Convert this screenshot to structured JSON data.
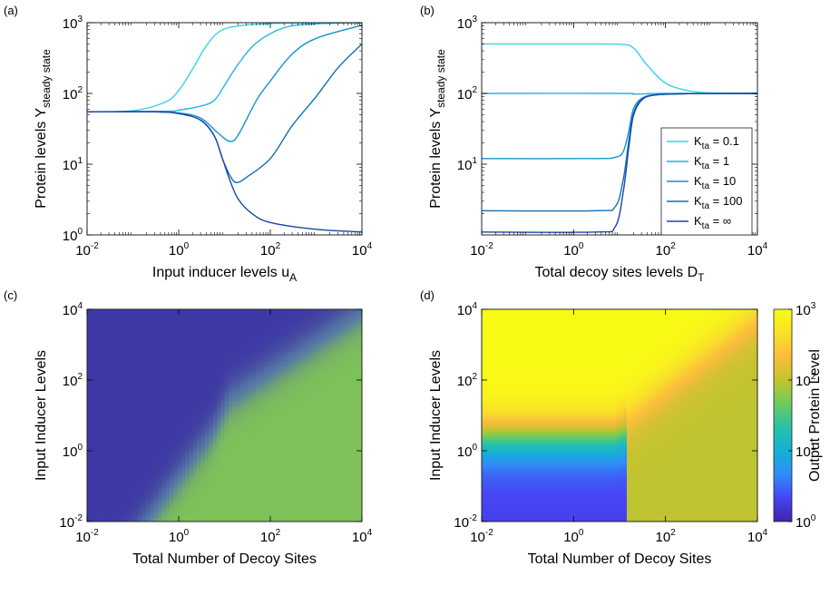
{
  "figure": {
    "panel_labels": [
      "(a)",
      "(b)",
      "(c)",
      "(d)"
    ]
  },
  "chart_data": [
    {
      "panel": "(a)",
      "type": "line",
      "scale": "log-log",
      "xlabel": {
        "main": "Input inducer levels u",
        "sub": "A"
      },
      "ylabel": {
        "main": "Protein levels Y",
        "sub": "steady state"
      },
      "xlim": [
        0.01,
        10000
      ],
      "ylim": [
        1,
        1000
      ],
      "xticks": [
        {
          "base": "10",
          "exp": "-2",
          "value": 0.01
        },
        {
          "base": "10",
          "exp": "0",
          "value": 1
        },
        {
          "base": "10",
          "exp": "2",
          "value": 100
        },
        {
          "base": "10",
          "exp": "4",
          "value": 10000
        }
      ],
      "yticks": [
        {
          "base": "10",
          "exp": "0",
          "value": 1
        },
        {
          "base": "10",
          "exp": "1",
          "value": 10
        },
        {
          "base": "10",
          "exp": "2",
          "value": 100
        },
        {
          "base": "10",
          "exp": "3",
          "value": 1000
        }
      ],
      "series": [
        {
          "color": "#37d4e8",
          "points": [
            [
              0.01,
              55
            ],
            [
              0.1,
              57
            ],
            [
              0.5,
              75
            ],
            [
              1,
              110
            ],
            [
              2,
              220
            ],
            [
              4,
              470
            ],
            [
              8,
              760
            ],
            [
              20,
              900
            ],
            [
              100,
              970
            ],
            [
              1000,
              995
            ],
            [
              10000,
              1000
            ]
          ]
        },
        {
          "color": "#22b4dc",
          "points": [
            [
              0.01,
              55
            ],
            [
              0.5,
              56
            ],
            [
              1,
              58
            ],
            [
              3,
              66
            ],
            [
              6,
              80
            ],
            [
              10,
              130
            ],
            [
              20,
              260
            ],
            [
              50,
              520
            ],
            [
              200,
              850
            ],
            [
              1000,
              960
            ],
            [
              10000,
              1000
            ]
          ]
        },
        {
          "color": "#1592cc",
          "points": [
            [
              0.01,
              55
            ],
            [
              0.3,
              55
            ],
            [
              1,
              53
            ],
            [
              3,
              45
            ],
            [
              7,
              28
            ],
            [
              13,
              21
            ],
            [
              20,
              26
            ],
            [
              50,
              80
            ],
            [
              100,
              150
            ],
            [
              300,
              360
            ],
            [
              1000,
              600
            ],
            [
              10000,
              920
            ]
          ]
        },
        {
          "color": "#106fb8",
          "points": [
            [
              0.01,
              55
            ],
            [
              0.3,
              55
            ],
            [
              1,
              52
            ],
            [
              3,
              42
            ],
            [
              6,
              25
            ],
            [
              9,
              12
            ],
            [
              13,
              7
            ],
            [
              18,
              5.5
            ],
            [
              30,
              6.5
            ],
            [
              100,
              12
            ],
            [
              300,
              35
            ],
            [
              1000,
              90
            ],
            [
              3000,
              230
            ],
            [
              10000,
              500
            ]
          ]
        },
        {
          "color": "#1749a8",
          "points": [
            [
              0.01,
              55
            ],
            [
              0.3,
              55
            ],
            [
              1,
              52
            ],
            [
              3,
              42
            ],
            [
              6,
              25
            ],
            [
              9,
              12
            ],
            [
              13,
              6
            ],
            [
              20,
              3.2
            ],
            [
              40,
              2
            ],
            [
              100,
              1.5
            ],
            [
              1000,
              1.2
            ],
            [
              10000,
              1.1
            ]
          ]
        }
      ]
    },
    {
      "panel": "(b)",
      "type": "line",
      "scale": "log-log",
      "xlabel": {
        "main": "Total decoy sites levels D",
        "sub": "T"
      },
      "ylabel": {
        "main": "Protein levels Y",
        "sub": "steady state"
      },
      "xlim": [
        0.01,
        10000
      ],
      "ylim": [
        1,
        1000
      ],
      "xticks": [
        {
          "base": "10",
          "exp": "-2",
          "value": 0.01
        },
        {
          "base": "10",
          "exp": "0",
          "value": 1
        },
        {
          "base": "10",
          "exp": "2",
          "value": 100
        },
        {
          "base": "10",
          "exp": "4",
          "value": 10000
        }
      ],
      "yticks": [
        {
          "base": "10",
          "exp": "1",
          "value": 10
        },
        {
          "base": "10",
          "exp": "2",
          "value": 100
        },
        {
          "base": "10",
          "exp": "3",
          "value": 1000
        }
      ],
      "legend_position": "right",
      "series": [
        {
          "name_main": "K",
          "name_sub": "ta",
          "name_value": " = 0.1",
          "color": "#37d4e8",
          "points": [
            [
              0.01,
              500
            ],
            [
              1,
              500
            ],
            [
              10,
              495
            ],
            [
              20,
              440
            ],
            [
              40,
              250
            ],
            [
              100,
              140
            ],
            [
              300,
              110
            ],
            [
              1000,
              102
            ],
            [
              10000,
              100
            ]
          ]
        },
        {
          "name_main": "K",
          "name_sub": "ta",
          "name_value": " = 1",
          "color": "#22b4dc",
          "points": [
            [
              0.01,
              100
            ],
            [
              10,
              100
            ],
            [
              20,
              98
            ],
            [
              40,
              99
            ],
            [
              100,
              100
            ],
            [
              10000,
              100
            ]
          ]
        },
        {
          "name_main": "K",
          "name_sub": "ta",
          "name_value": " = 10",
          "color": "#1592cc",
          "points": [
            [
              0.01,
              12
            ],
            [
              3,
              12
            ],
            [
              8,
              12.5
            ],
            [
              12,
              15
            ],
            [
              16,
              30
            ],
            [
              20,
              60
            ],
            [
              30,
              85
            ],
            [
              60,
              96
            ],
            [
              300,
              99
            ],
            [
              10000,
              100
            ]
          ]
        },
        {
          "name_main": "K",
          "name_sub": "ta",
          "name_value": " = 100",
          "color": "#106fb8",
          "points": [
            [
              0.01,
              2.2
            ],
            [
              3,
              2.2
            ],
            [
              8,
              2.5
            ],
            [
              12,
              6
            ],
            [
              16,
              22
            ],
            [
              20,
              52
            ],
            [
              30,
              82
            ],
            [
              60,
              95
            ],
            [
              300,
              99
            ],
            [
              10000,
              100
            ]
          ]
        },
        {
          "name_main": "K",
          "name_sub": "ta",
          "name_value": " = ∞",
          "color": "#1749a8",
          "points": [
            [
              0.01,
              1.1
            ],
            [
              3,
              1.1
            ],
            [
              8,
              1.3
            ],
            [
              12,
              4
            ],
            [
              16,
              18
            ],
            [
              20,
              48
            ],
            [
              30,
              80
            ],
            [
              60,
              95
            ],
            [
              300,
              99
            ],
            [
              10000,
              100
            ]
          ]
        }
      ]
    },
    {
      "panel": "(c)",
      "type": "heatmap",
      "scale": "log-log",
      "xlabel": "Total Number of Decoy Sites",
      "ylabel": "Input Inducer Levels",
      "xlim": [
        0.01,
        10000
      ],
      "ylim": [
        0.01,
        10000
      ],
      "xticks": [
        {
          "base": "10",
          "exp": "-2",
          "value": 0.01
        },
        {
          "base": "10",
          "exp": "0",
          "value": 1
        },
        {
          "base": "10",
          "exp": "2",
          "value": 100
        },
        {
          "base": "10",
          "exp": "4",
          "value": 10000
        }
      ],
      "yticks": [
        {
          "base": "10",
          "exp": "-2",
          "value": 0.01
        },
        {
          "base": "10",
          "exp": "0",
          "value": 1
        },
        {
          "base": "10",
          "exp": "2",
          "value": 100
        },
        {
          "base": "10",
          "exp": "4",
          "value": 10000
        }
      ],
      "colors": {
        "low": "#3d37a4",
        "high": "#7fc455"
      }
    },
    {
      "panel": "(d)",
      "type": "heatmap",
      "scale": "log-log",
      "xlabel": "Total Number of Decoy Sites",
      "ylabel": "Input Inducer Levels",
      "xlim": [
        0.01,
        10000
      ],
      "ylim": [
        0.01,
        10000
      ],
      "xticks": [
        {
          "base": "10",
          "exp": "-2",
          "value": 0.01
        },
        {
          "base": "10",
          "exp": "0",
          "value": 1
        },
        {
          "base": "10",
          "exp": "2",
          "value": 100
        },
        {
          "base": "10",
          "exp": "4",
          "value": 10000
        }
      ],
      "yticks": [
        {
          "base": "10",
          "exp": "-2",
          "value": 0.01
        },
        {
          "base": "10",
          "exp": "0",
          "value": 1
        },
        {
          "base": "10",
          "exp": "2",
          "value": 100
        },
        {
          "base": "10",
          "exp": "4",
          "value": 10000
        }
      ],
      "colorbar": {
        "label": "Output Protein Level",
        "range": [
          1,
          1000
        ],
        "ticks": [
          {
            "base": "10",
            "exp": "0",
            "value": 1
          },
          {
            "base": "10",
            "exp": "1",
            "value": 10
          },
          {
            "base": "10",
            "exp": "2",
            "value": 100
          },
          {
            "base": "10",
            "exp": "3",
            "value": 1000
          }
        ],
        "stops": [
          "#3e26a8",
          "#4743f3",
          "#2f8ef8",
          "#13b1d4",
          "#28c1a8",
          "#6dcc5c",
          "#c3c42e",
          "#fbbc3c",
          "#f8e228",
          "#f9fb15"
        ]
      }
    }
  ]
}
